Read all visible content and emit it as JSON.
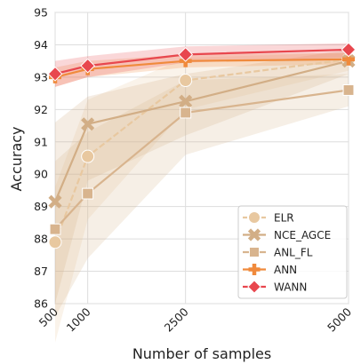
{
  "chart_data": {
    "type": "line",
    "xlabel": "Number of samples",
    "ylabel": "Accuracy",
    "x": [
      500,
      1000,
      2500,
      5000
    ],
    "x_ticks": [
      "500",
      "1000",
      "2500",
      "5000"
    ],
    "xlim": [
      500,
      5000
    ],
    "ylim": [
      86,
      95
    ],
    "y_ticks": [
      "86",
      "87",
      "88",
      "89",
      "90",
      "91",
      "92",
      "93",
      "94",
      "95"
    ],
    "grid": true,
    "legend_position": "lower-right",
    "series": [
      {
        "name": "ELR",
        "values": [
          87.9,
          90.55,
          92.9,
          93.55
        ],
        "band_lower": [
          84.8,
          88.6,
          92.0,
          93.2
        ],
        "band_upper": [
          89.6,
          92.3,
          93.6,
          93.75
        ],
        "color": "#e8c8a0",
        "marker": "circle",
        "dash": "dashed"
      },
      {
        "name": "NCE_AGCE",
        "values": [
          89.15,
          91.55,
          92.25,
          93.5
        ],
        "band_lower": [
          86.0,
          89.8,
          91.2,
          93.1
        ],
        "band_upper": [
          91.6,
          92.4,
          93.1,
          93.85
        ],
        "color": "#d2ae86",
        "marker": "x",
        "dash": "solid"
      },
      {
        "name": "ANL_FL",
        "values": [
          88.3,
          89.4,
          91.9,
          92.6
        ],
        "band_lower": [
          85.6,
          87.4,
          90.6,
          92.1
        ],
        "band_upper": [
          90.4,
          91.3,
          92.9,
          93.1
        ],
        "color": "#d8b48e",
        "marker": "square",
        "dash": "solid"
      },
      {
        "name": "ANN",
        "values": [
          93.0,
          93.25,
          93.5,
          93.55
        ],
        "band_lower": [
          92.7,
          93.0,
          93.3,
          93.4
        ],
        "band_upper": [
          93.3,
          93.5,
          93.7,
          93.75
        ],
        "color": "#f08a3c",
        "marker": "plus",
        "dash": "solid"
      },
      {
        "name": "WANN",
        "values": [
          93.1,
          93.35,
          93.7,
          93.85
        ],
        "band_lower": [
          92.7,
          93.0,
          93.45,
          93.6
        ],
        "band_upper": [
          93.5,
          93.65,
          93.95,
          94.05
        ],
        "color": "#e8474e",
        "marker": "diamond",
        "dash": "solid"
      }
    ]
  }
}
